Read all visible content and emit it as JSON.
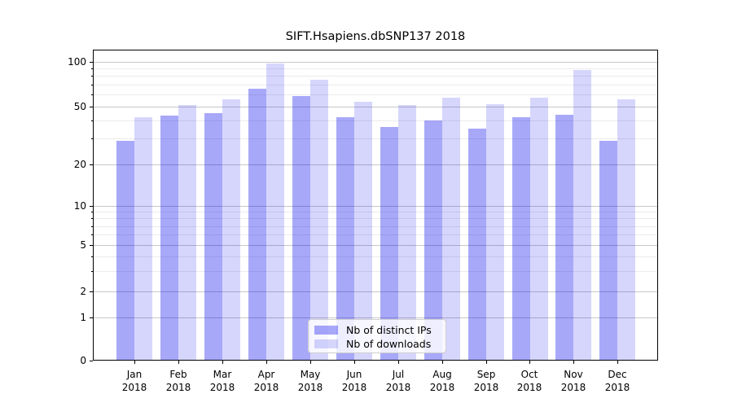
{
  "chart_data": {
    "type": "bar",
    "title": "SIFT.Hsapiens.dbSNP137 2018",
    "year": "2018",
    "months": [
      "Jan",
      "Feb",
      "Mar",
      "Apr",
      "May",
      "Jun",
      "Jul",
      "Aug",
      "Sep",
      "Oct",
      "Nov",
      "Dec"
    ],
    "categories": [
      "Jan 2018",
      "Feb 2018",
      "Mar 2018",
      "Apr 2018",
      "May 2018",
      "Jun 2018",
      "Jul 2018",
      "Aug 2018",
      "Sep 2018",
      "Oct 2018",
      "Nov 2018",
      "Dec 2018"
    ],
    "series": [
      {
        "name": "Nb of distinct IPs",
        "color": "rgba(0,0,238,0.34)",
        "color_apparent_hex": "#aaaaf9",
        "values": [
          29,
          43,
          45,
          66,
          59,
          42,
          36,
          40,
          35,
          42,
          44,
          29
        ]
      },
      {
        "name": "Nb of downloads",
        "color": "rgba(0,0,238,0.16)",
        "color_apparent_hex": "#d9d9fb",
        "values": [
          42,
          51,
          56,
          97,
          75,
          54,
          51,
          57,
          52,
          57,
          88,
          56
        ]
      }
    ],
    "y_axis": {
      "scale": "symlog",
      "ticks": [
        100,
        50,
        20,
        10,
        5,
        2,
        1,
        0
      ],
      "minor_ticks": [
        90,
        80,
        70,
        60,
        40,
        30,
        9,
        8,
        7,
        6,
        4,
        3
      ],
      "range": [
        0,
        115
      ]
    },
    "x_axis": {
      "tick_label_lines": 2
    },
    "legend": {
      "position": "lower center",
      "entries": [
        "Nb of distinct IPs",
        "Nb of downloads"
      ]
    },
    "grid": true,
    "colors": {
      "grid_major": "#c7c7c7",
      "grid_minor": "#ebebeb",
      "axis": "#000000",
      "background": "#ffffff"
    }
  }
}
